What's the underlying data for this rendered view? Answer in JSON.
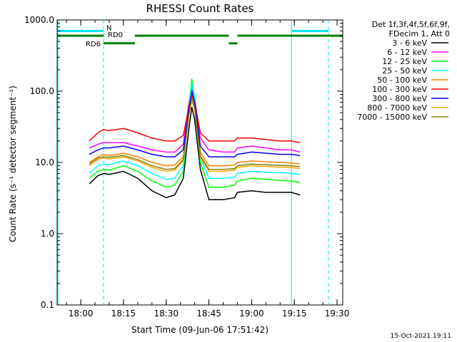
{
  "chart_data": {
    "type": "line",
    "title": "RHESSI Count Rates",
    "xlabel": "Start Time (09-Jun-06 17:51:42)",
    "ylabel": "Count Rate (s⁻¹ detector segment⁻¹)",
    "y_scale": "log",
    "ylim": [
      0.1,
      1000
    ],
    "xlim": [
      "17:51:42",
      "19:32:00"
    ],
    "x_ticks": [
      "18:00",
      "18:15",
      "18:30",
      "18:45",
      "19:00",
      "19:15",
      "19:30"
    ],
    "y_ticks": [
      "0.1",
      "1.0",
      "10.0",
      "100.0",
      "1000.0"
    ],
    "grid": false,
    "legend": {
      "placement": "right",
      "header": [
        "Det 1f,3f,4f,5f,6f,9f,",
        "FDecim 1, Att 0"
      ]
    },
    "x": [
      "18:03",
      "18:06",
      "18:08",
      "18:10",
      "18:15",
      "18:20",
      "18:25",
      "18:30",
      "18:33",
      "18:36",
      "18:38",
      "18:39",
      "18:40",
      "18:42",
      "18:45",
      "18:50",
      "18:54",
      "18:55",
      "19:00",
      "19:05",
      "19:10",
      "19:14",
      "19:17"
    ],
    "series": [
      {
        "name": "3 - 6 keV",
        "color": "#000000",
        "values": [
          5.0,
          6.5,
          7.0,
          6.8,
          7.5,
          6.0,
          4.0,
          3.2,
          3.5,
          6.0,
          30,
          60,
          40,
          8.0,
          3.0,
          3.0,
          3.2,
          3.8,
          4.0,
          3.8,
          3.8,
          3.8,
          3.5
        ]
      },
      {
        "name": "6 - 12 keV",
        "color": "#ff00ff",
        "values": [
          16,
          18,
          19,
          19,
          19,
          17,
          15,
          14,
          14,
          18,
          70,
          110,
          80,
          22,
          15,
          14,
          14,
          16,
          17,
          16,
          15,
          15,
          14
        ]
      },
      {
        "name": "12 - 25 keV",
        "color": "#00ff00",
        "values": [
          6.0,
          7.5,
          8.0,
          7.8,
          9.0,
          7.5,
          5.5,
          4.5,
          4.8,
          7.5,
          60,
          150,
          80,
          10,
          4.5,
          4.5,
          4.8,
          5.5,
          6.0,
          5.8,
          5.6,
          5.5,
          5.2
        ]
      },
      {
        "name": "25 - 50 keV",
        "color": "#00ffff",
        "values": [
          7.0,
          9.0,
          9.5,
          9.3,
          10.5,
          9.0,
          7.0,
          5.8,
          6.0,
          9.0,
          55,
          130,
          75,
          12,
          6.0,
          6.0,
          6.2,
          7.0,
          7.5,
          7.3,
          7.2,
          7.0,
          6.8
        ]
      },
      {
        "name": "50 - 100 keV",
        "color": "#ff8000",
        "values": [
          10,
          12,
          13,
          12.5,
          13.5,
          12,
          10,
          9,
          9.2,
          12,
          50,
          85,
          60,
          14,
          9,
          9,
          9.2,
          10,
          10.5,
          10.2,
          10,
          9.8,
          9.5
        ]
      },
      {
        "name": "100 - 300 keV",
        "color": "#ff0000",
        "values": [
          20,
          26,
          29,
          28,
          30,
          26,
          22,
          20,
          20,
          24,
          60,
          90,
          70,
          26,
          20,
          20,
          20,
          22,
          22,
          21,
          20,
          20,
          19
        ]
      },
      {
        "name": "300 - 800 keV",
        "color": "#0000ff",
        "values": [
          13,
          15,
          16,
          16,
          17,
          15,
          13,
          12,
          12,
          15,
          55,
          100,
          70,
          17,
          12,
          12,
          12,
          13,
          14,
          13.5,
          13,
          13,
          12.5
        ]
      },
      {
        "name": "800 - 7000 keV",
        "color": "#ffa500",
        "values": [
          9,
          11,
          11.5,
          11.2,
          12,
          10.5,
          8.5,
          7.5,
          7.8,
          10.5,
          45,
          75,
          55,
          12,
          7.5,
          7.5,
          7.8,
          8.5,
          9,
          8.8,
          8.6,
          8.5,
          8.2
        ]
      },
      {
        "name": "7000 - 15000 keV",
        "color": "#808000",
        "values": [
          9.5,
          11.5,
          12,
          11.8,
          12.5,
          11,
          9,
          8,
          8.2,
          11,
          48,
          80,
          58,
          12.5,
          8,
          8,
          8.2,
          9,
          9.5,
          9.3,
          9.1,
          9,
          8.7
        ]
      }
    ],
    "annotations": {
      "attenuator": [
        {
          "label": "RD0",
          "color": "#008000",
          "level": 600,
          "segments": [
            [
              "17:51:42",
              "18:08"
            ],
            [
              "18:19",
              "18:52"
            ],
            [
              "18:55",
              "19:32"
            ]
          ]
        },
        {
          "label": "RD6",
          "color": "#008000",
          "level": 470,
          "segments": [
            [
              "18:08",
              "18:19"
            ],
            [
              "18:52",
              "18:55"
            ]
          ]
        },
        {
          "label": "N",
          "color": "#00e5ee",
          "level": 700,
          "segments": [
            [
              "17:51:42",
              "18:08"
            ],
            [
              "19:14",
              "19:27"
            ]
          ]
        }
      ],
      "vertical_solid": [
        "17:52",
        "19:14"
      ],
      "vertical_dashed": [
        "18:08",
        "19:27"
      ],
      "vertical_color": "#00e5ee"
    },
    "footer": "15-Oct-2021 19:11"
  }
}
